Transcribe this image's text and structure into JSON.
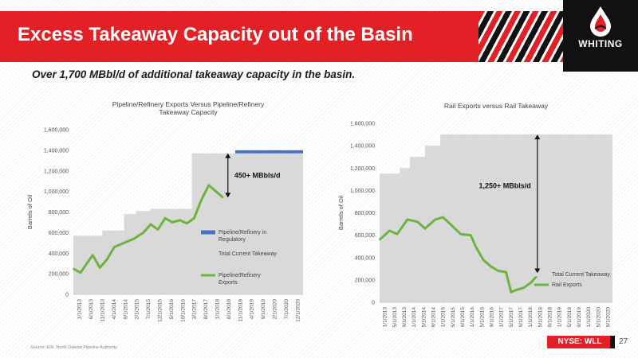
{
  "slide": {
    "title": "Excess Takeaway Capacity out of the Basin",
    "subtitle": "Over 1,700 MBbl/d of additional takeaway capacity in the basin.",
    "source": "Source: EIA, North Dakota Pipeline Authority",
    "logo_text": "WHITING",
    "ticker_prefix": "NYSE:",
    "ticker": "WLL",
    "page_number": "27"
  },
  "colors": {
    "brand_red": "#e32026",
    "capacity_fill": "#d9d9d9",
    "exports_line": "#6db33f",
    "regulatory": "#4472c4"
  },
  "chart_data": [
    {
      "type": "area",
      "title": "Pipeline/Refinery Exports Versus Pipeline/Refinery Takeaway Capacity",
      "ylabel": "Barrels of Oil",
      "ylim": [
        0,
        1600000
      ],
      "yticks": [
        "0",
        "200,000",
        "400,000",
        "600,000",
        "800,000",
        "1,000,000",
        "1,200,000",
        "1,400,000",
        "1,600,000"
      ],
      "x_range": [
        "2013-01-01",
        "2020-12-01"
      ],
      "xticks": [
        "1/1/2013",
        "6/1/2013",
        "11/1/2013",
        "4/1/2014",
        "9/1/2014",
        "2/1/2015",
        "7/1/2015",
        "12/1/2015",
        "5/1/2016",
        "10/1/2016",
        "3/1/2017",
        "8/1/2017",
        "1/1/2018",
        "6/1/2018",
        "11/1/2018",
        "4/1/2019",
        "9/1/2019",
        "2/1/2020",
        "7/1/2020",
        "12/1/2020"
      ],
      "capacity_steps": [
        {
          "from": "2013-01-01",
          "value": 570000
        },
        {
          "from": "2014-01-01",
          "value": 620000
        },
        {
          "from": "2014-10-01",
          "value": 780000
        },
        {
          "from": "2015-03-01",
          "value": 810000
        },
        {
          "from": "2015-09-01",
          "value": 830000
        },
        {
          "from": "2017-02-01",
          "value": 1370000
        }
      ],
      "regulatory": {
        "from": "2018-08-01",
        "to": "2020-12-01",
        "low": 1370000,
        "high": 1400000
      },
      "exports": [
        {
          "x": "2013-01-01",
          "y": 250000
        },
        {
          "x": "2013-04-01",
          "y": 210000
        },
        {
          "x": "2013-06-01",
          "y": 280000
        },
        {
          "x": "2013-09-01",
          "y": 380000
        },
        {
          "x": "2013-12-01",
          "y": 260000
        },
        {
          "x": "2014-03-01",
          "y": 340000
        },
        {
          "x": "2014-06-01",
          "y": 460000
        },
        {
          "x": "2014-10-01",
          "y": 500000
        },
        {
          "x": "2015-02-01",
          "y": 540000
        },
        {
          "x": "2015-06-01",
          "y": 600000
        },
        {
          "x": "2015-09-01",
          "y": 680000
        },
        {
          "x": "2015-12-01",
          "y": 630000
        },
        {
          "x": "2016-03-01",
          "y": 740000
        },
        {
          "x": "2016-06-01",
          "y": 700000
        },
        {
          "x": "2016-09-01",
          "y": 720000
        },
        {
          "x": "2016-12-01",
          "y": 690000
        },
        {
          "x": "2017-03-01",
          "y": 740000
        },
        {
          "x": "2017-06-01",
          "y": 920000
        },
        {
          "x": "2017-09-01",
          "y": 1060000
        },
        {
          "x": "2017-12-01",
          "y": 1000000
        },
        {
          "x": "2018-03-01",
          "y": 940000
        }
      ],
      "annotation": "450+ MBbls/d",
      "legend": [
        "Pipeline/Refinery in Regulatory",
        "Total Current Takeaway",
        "Pipeline/Refinery Exports"
      ]
    },
    {
      "type": "area",
      "title": "Rail Exports versus Rail Takeaway",
      "ylabel": "Barrels of Oil",
      "ylim": [
        0,
        1600000
      ],
      "yticks": [
        "0",
        "200,000",
        "400,000",
        "600,000",
        "800,000",
        "1,000,000",
        "1,200,000",
        "1,400,000",
        "1,600,000"
      ],
      "x_range": [
        "2013-01-01",
        "2020-09-01"
      ],
      "xticks": [
        "1/1/2013",
        "5/1/2013",
        "9/1/2013",
        "1/1/2014",
        "5/1/2014",
        "9/1/2014",
        "1/1/2015",
        "5/1/2015",
        "9/1/2015",
        "1/1/2016",
        "5/1/2016",
        "9/1/2016",
        "1/1/2017",
        "5/1/2017",
        "9/1/2017",
        "1/1/2018",
        "5/1/2018",
        "9/1/2018",
        "1/1/2019",
        "5/1/2019",
        "9/1/2019",
        "1/1/2020",
        "5/1/2020",
        "9/1/2020"
      ],
      "capacity_steps": [
        {
          "from": "2013-01-01",
          "value": 1150000
        },
        {
          "from": "2013-09-01",
          "value": 1200000
        },
        {
          "from": "2014-01-01",
          "value": 1300000
        },
        {
          "from": "2014-07-01",
          "value": 1400000
        },
        {
          "from": "2015-01-01",
          "value": 1500000
        }
      ],
      "exports": [
        {
          "x": "2013-01-01",
          "y": 560000
        },
        {
          "x": "2013-05-01",
          "y": 640000
        },
        {
          "x": "2013-08-01",
          "y": 610000
        },
        {
          "x": "2013-12-01",
          "y": 740000
        },
        {
          "x": "2014-04-01",
          "y": 720000
        },
        {
          "x": "2014-07-01",
          "y": 660000
        },
        {
          "x": "2014-11-01",
          "y": 740000
        },
        {
          "x": "2015-02-01",
          "y": 760000
        },
        {
          "x": "2015-05-01",
          "y": 700000
        },
        {
          "x": "2015-09-01",
          "y": 610000
        },
        {
          "x": "2016-01-01",
          "y": 600000
        },
        {
          "x": "2016-03-01",
          "y": 500000
        },
        {
          "x": "2016-06-01",
          "y": 380000
        },
        {
          "x": "2016-09-01",
          "y": 320000
        },
        {
          "x": "2016-12-01",
          "y": 280000
        },
        {
          "x": "2017-03-01",
          "y": 270000
        },
        {
          "x": "2017-05-01",
          "y": 90000
        },
        {
          "x": "2017-07-01",
          "y": 110000
        },
        {
          "x": "2017-10-01",
          "y": 130000
        },
        {
          "x": "2018-01-01",
          "y": 180000
        },
        {
          "x": "2018-04-01",
          "y": 260000
        }
      ],
      "annotation": "1,250+ MBbls/d",
      "legend": [
        "Total Current Takeaway",
        "Rail Exports"
      ]
    }
  ]
}
